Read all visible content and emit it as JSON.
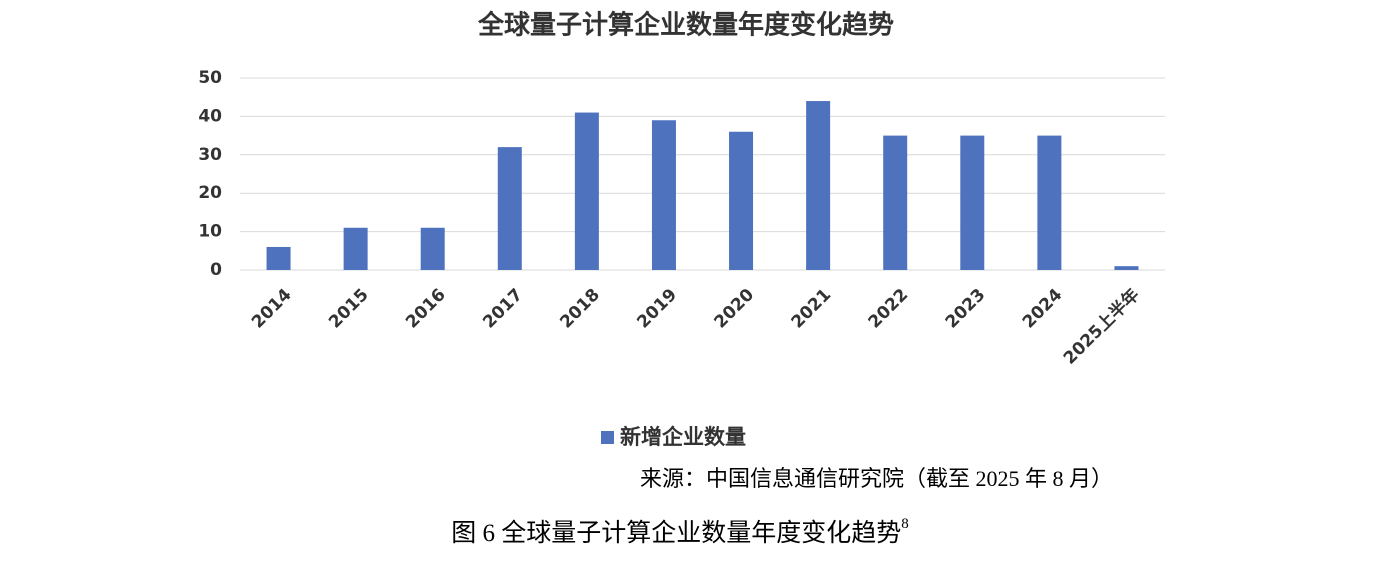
{
  "chart_data": {
    "type": "bar",
    "title": "全球量子计算企业数量年度变化趋势",
    "categories": [
      "2014",
      "2015",
      "2016",
      "2017",
      "2018",
      "2019",
      "2020",
      "2021",
      "2022",
      "2023",
      "2024",
      "2025上半年"
    ],
    "series": [
      {
        "name": "新增企业数量",
        "color": "#4f72be",
        "values": [
          6,
          11,
          11,
          32,
          41,
          39,
          36,
          44,
          35,
          35,
          35,
          1
        ]
      }
    ],
    "ylim": [
      0,
      50
    ],
    "yticks": [
      0,
      10,
      20,
      30,
      40,
      50
    ],
    "grid": true,
    "legend": "bottom"
  },
  "source": "来源：中国信息通信研究院（截至 2025 年 8 月）",
  "caption": {
    "text": "图 6 全球量子计算企业数量年度变化趋势",
    "footnote": "8"
  }
}
